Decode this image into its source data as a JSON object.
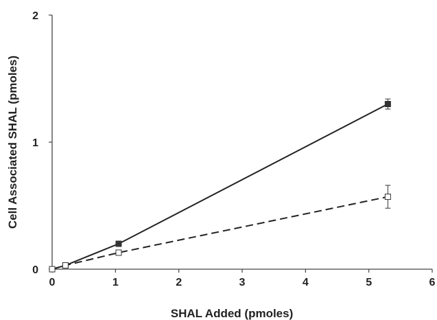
{
  "chart_data": {
    "type": "line",
    "xlabel": "SHAL Added (pmoles)",
    "ylabel": "Cell Associated SHAL (pmoles)",
    "xlim": [
      0,
      6
    ],
    "ylim": [
      0,
      2
    ],
    "xticks": [
      "0",
      "1",
      "2",
      "3",
      "4",
      "5",
      "6"
    ],
    "yticks": [
      "0",
      "1",
      "2"
    ],
    "grid": false,
    "legend": "none",
    "series": [
      {
        "style": "solid",
        "marker": "filled-square",
        "color": "#222222",
        "points": [
          {
            "x": 0,
            "y": 0
          },
          {
            "x": 0.21,
            "y": 0.03
          },
          {
            "x": 1.05,
            "y": 0.2
          },
          {
            "x": 5.3,
            "y": 1.3,
            "err": 0.04
          }
        ]
      },
      {
        "style": "dashed",
        "marker": "open-square",
        "color": "#222222",
        "points": [
          {
            "x": 0,
            "y": 0
          },
          {
            "x": 0.21,
            "y": 0.03
          },
          {
            "x": 1.05,
            "y": 0.13
          },
          {
            "x": 5.3,
            "y": 0.57,
            "err": 0.09
          }
        ]
      }
    ]
  }
}
